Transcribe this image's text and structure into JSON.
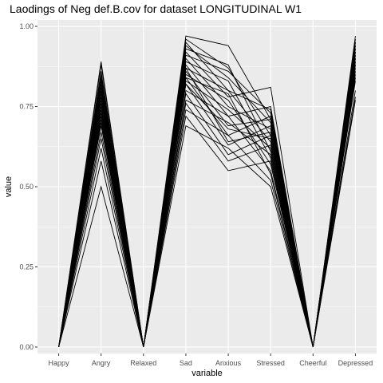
{
  "chart_data": {
    "type": "line",
    "title": "Laodings of Neg def.B.cov for dataset LONGITUDINAL W1",
    "xlabel": "variable",
    "ylabel": "value",
    "categories": [
      "Happy",
      "Angry",
      "Relaxed",
      "Sad",
      "Anxious",
      "Stressed",
      "Cheerful",
      "Depressed"
    ],
    "ylim": [
      -0.02,
      1.02
    ],
    "yticks": [
      0.0,
      0.25,
      0.5,
      0.75,
      1.0
    ],
    "ytick_labels": [
      "0.00",
      "0.25",
      "0.50",
      "0.75",
      "1.00"
    ],
    "grid": true,
    "legend": "none",
    "line_color": "#000000",
    "panel_background": "#ebebeb",
    "grid_color": "#ffffff",
    "series": [
      {
        "values": [
          0,
          0.89,
          0,
          0.97,
          0.94,
          0.71,
          0,
          0.97
        ]
      },
      {
        "values": [
          0,
          0.88,
          0,
          0.96,
          0.87,
          0.66,
          0,
          0.96
        ]
      },
      {
        "values": [
          0,
          0.86,
          0,
          0.95,
          0.8,
          0.74,
          0,
          0.95
        ]
      },
      {
        "values": [
          0,
          0.85,
          0,
          0.94,
          0.84,
          0.7,
          0,
          0.95
        ]
      },
      {
        "values": [
          0,
          0.84,
          0,
          0.93,
          0.88,
          0.61,
          0,
          0.94
        ]
      },
      {
        "values": [
          0,
          0.83,
          0,
          0.92,
          0.78,
          0.81,
          0,
          0.94
        ]
      },
      {
        "values": [
          0,
          0.82,
          0,
          0.91,
          0.86,
          0.73,
          0,
          0.93
        ]
      },
      {
        "values": [
          0,
          0.81,
          0,
          0.9,
          0.75,
          0.68,
          0,
          0.93
        ]
      },
      {
        "values": [
          0,
          0.8,
          0,
          0.89,
          0.83,
          0.59,
          0,
          0.92
        ]
      },
      {
        "values": [
          0,
          0.8,
          0,
          0.88,
          0.72,
          0.75,
          0,
          0.92
        ]
      },
      {
        "values": [
          0,
          0.79,
          0,
          0.87,
          0.8,
          0.64,
          0,
          0.91
        ]
      },
      {
        "values": [
          0,
          0.78,
          0,
          0.86,
          0.69,
          0.71,
          0,
          0.91
        ]
      },
      {
        "values": [
          0,
          0.77,
          0,
          0.85,
          0.77,
          0.57,
          0,
          0.9
        ]
      },
      {
        "values": [
          0,
          0.76,
          0,
          0.84,
          0.66,
          0.72,
          0,
          0.9
        ]
      },
      {
        "values": [
          0,
          0.75,
          0,
          0.83,
          0.74,
          0.62,
          0,
          0.89
        ]
      },
      {
        "values": [
          0,
          0.74,
          0,
          0.82,
          0.63,
          0.69,
          0,
          0.89
        ]
      },
      {
        "values": [
          0,
          0.73,
          0,
          0.8,
          0.72,
          0.55,
          0,
          0.88
        ]
      },
      {
        "values": [
          0,
          0.72,
          0,
          0.79,
          0.6,
          0.66,
          0,
          0.88
        ]
      },
      {
        "values": [
          0,
          0.71,
          0,
          0.77,
          0.7,
          0.6,
          0,
          0.87
        ]
      },
      {
        "values": [
          0,
          0.7,
          0,
          0.76,
          0.58,
          0.63,
          0,
          0.86
        ]
      },
      {
        "values": [
          0,
          0.69,
          0,
          0.74,
          0.66,
          0.52,
          0,
          0.85
        ]
      },
      {
        "values": [
          0,
          0.67,
          0,
          0.72,
          0.55,
          0.58,
          0,
          0.84
        ]
      },
      {
        "values": [
          0,
          0.65,
          0,
          0.69,
          0.62,
          0.5,
          0,
          0.83
        ]
      },
      {
        "values": [
          0,
          0.62,
          0,
          0.87,
          0.64,
          0.67,
          0,
          0.8
        ]
      },
      {
        "values": [
          0,
          0.58,
          0,
          0.84,
          0.79,
          0.54,
          0,
          0.78
        ]
      },
      {
        "values": [
          0,
          0.5,
          0,
          0.82,
          0.68,
          0.65,
          0,
          0.77
        ]
      }
    ]
  }
}
